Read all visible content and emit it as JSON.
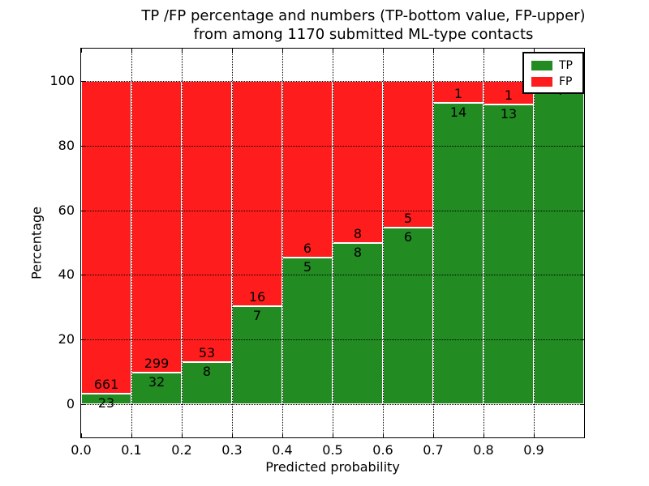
{
  "title": {
    "line1": "TP /FP percentage and numbers (TP-bottom value, FP-upper)",
    "line2": "from among 1170 submitted ML-type contacts"
  },
  "axes": {
    "xlabel": "Predicted probability",
    "ylabel": "Percentage",
    "x_tick_labels": [
      "0.0",
      "0.1",
      "0.2",
      "0.3",
      "0.4",
      "0.5",
      "0.6",
      "0.7",
      "0.8",
      "0.9"
    ],
    "y_tick_values": [
      0,
      20,
      40,
      60,
      80,
      100
    ]
  },
  "legend": {
    "items": [
      {
        "label": "TP",
        "color": "#228B22"
      },
      {
        "label": "FP",
        "color": "#FF1C1C"
      }
    ],
    "position": "upper right"
  },
  "colors": {
    "tp": "#228B22",
    "fp": "#FF1C1C",
    "grid": "#000000"
  },
  "chart_data": {
    "type": "bar",
    "stacked": true,
    "normalized": "each bin scaled to 100%, heights are TP/(TP+FP) percent",
    "title": "TP /FP percentage and numbers (TP-bottom value, FP-upper) from among 1170 submitted ML-type contacts",
    "xlabel": "Predicted probability",
    "ylabel": "Percentage",
    "bin_starts": [
      0.0,
      0.1,
      0.2,
      0.3,
      0.4,
      0.5,
      0.6,
      0.7,
      0.8,
      0.9
    ],
    "bin_width": 0.1,
    "series": [
      {
        "name": "TP",
        "color": "#228B22",
        "counts": [
          23,
          32,
          8,
          7,
          5,
          8,
          6,
          14,
          13,
          4
        ]
      },
      {
        "name": "FP",
        "color": "#FF1C1C",
        "counts": [
          661,
          299,
          53,
          16,
          6,
          8,
          5,
          1,
          1,
          0
        ]
      }
    ],
    "tp_percent_per_bin": [
      3.4,
      9.7,
      13.1,
      30.4,
      45.5,
      50.0,
      54.5,
      93.3,
      92.9,
      100.0
    ],
    "total_contacts": 1170,
    "xlim": [
      0.0,
      1.0
    ],
    "ylim": [
      -10,
      110
    ],
    "grid": true,
    "legend_position": "upper right"
  }
}
